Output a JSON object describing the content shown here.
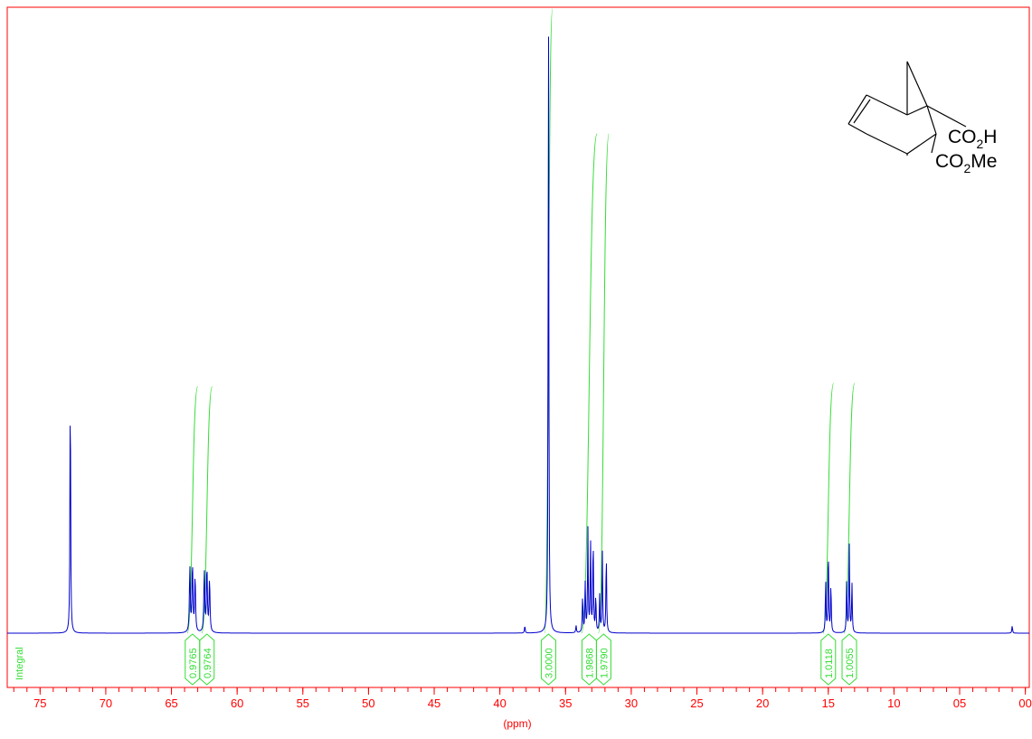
{
  "chart_data": {
    "type": "line",
    "xlabel": "(ppm)",
    "x_reversed": true,
    "xlim": [
      7.75,
      -0.03
    ],
    "x_ticks": [
      {
        "value": 7.5,
        "label": "75"
      },
      {
        "value": 7.0,
        "label": "70"
      },
      {
        "value": 6.5,
        "label": "65"
      },
      {
        "value": 6.0,
        "label": "60"
      },
      {
        "value": 5.5,
        "label": "55"
      },
      {
        "value": 5.0,
        "label": "50"
      },
      {
        "value": 4.5,
        "label": "45"
      },
      {
        "value": 4.0,
        "label": "40"
      },
      {
        "value": 3.5,
        "label": "35"
      },
      {
        "value": 3.0,
        "label": "30"
      },
      {
        "value": 2.5,
        "label": "25"
      },
      {
        "value": 2.0,
        "label": "20"
      },
      {
        "value": 1.5,
        "label": "15"
      },
      {
        "value": 1.0,
        "label": "10"
      },
      {
        "value": 0.5,
        "label": "05"
      },
      {
        "value": 0.0,
        "label": "00"
      }
    ],
    "spectrum_color": "#0000cc",
    "integral_color": "#33dd33",
    "frame_color": "#ff0000",
    "integral_axis_label": "Integral",
    "peaks": [
      {
        "ppm": 7.27,
        "height": 0.415,
        "width": 0.006
      },
      {
        "ppm": 6.36,
        "height": 0.105,
        "width": 0.008
      },
      {
        "ppm": 6.34,
        "height": 0.11,
        "width": 0.008
      },
      {
        "ppm": 6.32,
        "height": 0.09,
        "width": 0.008
      },
      {
        "ppm": 6.25,
        "height": 0.1,
        "width": 0.008
      },
      {
        "ppm": 6.23,
        "height": 0.105,
        "width": 0.008
      },
      {
        "ppm": 6.21,
        "height": 0.085,
        "width": 0.008
      },
      {
        "ppm": 3.81,
        "height": 0.012,
        "width": 0.006
      },
      {
        "ppm": 3.63,
        "height": 1.0,
        "width": 0.006
      },
      {
        "ppm": 3.42,
        "height": 0.012,
        "width": 0.006
      },
      {
        "ppm": 3.37,
        "height": 0.06,
        "width": 0.006
      },
      {
        "ppm": 3.35,
        "height": 0.08,
        "width": 0.006
      },
      {
        "ppm": 3.33,
        "height": 0.165,
        "width": 0.006
      },
      {
        "ppm": 3.31,
        "height": 0.15,
        "width": 0.006
      },
      {
        "ppm": 3.29,
        "height": 0.155,
        "width": 0.006
      },
      {
        "ppm": 3.27,
        "height": 0.06,
        "width": 0.006
      },
      {
        "ppm": 3.24,
        "height": 0.06,
        "width": 0.006
      },
      {
        "ppm": 3.22,
        "height": 0.13,
        "width": 0.006
      },
      {
        "ppm": 3.19,
        "height": 0.13,
        "width": 0.006
      },
      {
        "ppm": 1.52,
        "height": 0.085,
        "width": 0.006
      },
      {
        "ppm": 1.5,
        "height": 0.14,
        "width": 0.006
      },
      {
        "ppm": 1.48,
        "height": 0.08,
        "width": 0.006
      },
      {
        "ppm": 1.36,
        "height": 0.085,
        "width": 0.006
      },
      {
        "ppm": 1.34,
        "height": 0.14,
        "width": 0.006
      },
      {
        "ppm": 1.32,
        "height": 0.08,
        "width": 0.006
      },
      {
        "ppm": 0.1,
        "height": 0.012,
        "width": 0.006
      }
    ],
    "integrals": [
      {
        "label": "0.9765",
        "from": 6.38,
        "to": 6.3,
        "top": 0.395
      },
      {
        "label": "0.9764",
        "from": 6.27,
        "to": 6.19,
        "top": 0.395
      },
      {
        "label": "3.0000",
        "from": 3.66,
        "to": 3.6,
        "top": 1.0
      },
      {
        "label": "1.9868",
        "from": 3.38,
        "to": 3.26,
        "top": 0.8
      },
      {
        "label": "1.9790",
        "from": 3.25,
        "to": 3.17,
        "top": 0.8
      },
      {
        "label": "1.0118",
        "from": 1.54,
        "to": 1.46,
        "top": 0.4
      },
      {
        "label": "1.0055",
        "from": 1.38,
        "to": 1.3,
        "top": 0.4
      }
    ],
    "structure_labels": {
      "acid": {
        "pre": "CO",
        "sub": "2",
        "post": "H"
      },
      "ester": {
        "pre": "CO",
        "sub": "2",
        "post": "Me"
      }
    }
  }
}
